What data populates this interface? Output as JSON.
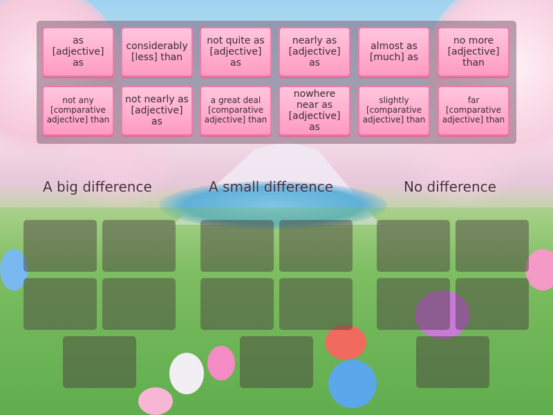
{
  "word_bank": [
    "as\n[adjective]\nas",
    "considerably\n[less] than",
    "not quite as\n[adjective]\nas",
    "nearly as\n[adjective]\nas",
    "almost as\n[much] as",
    "no more\n[adjective]\nthan",
    "not any\n[comparative\nadjective] than",
    "not nearly as\n[adjective]\nas",
    "a great deal\n[comparative\nadjective] than",
    "nowhere\nnear as\n[adjective] as",
    "slightly\n[comparative\nadjective] than",
    "far\n[comparative\nadjective] than"
  ],
  "categories": [
    {
      "title": "A big difference"
    },
    {
      "title": "A small difference"
    },
    {
      "title": "No difference"
    }
  ],
  "colors": {
    "card": "#ff9bc2",
    "card_border": "#f179a8",
    "slot": "#463740"
  }
}
